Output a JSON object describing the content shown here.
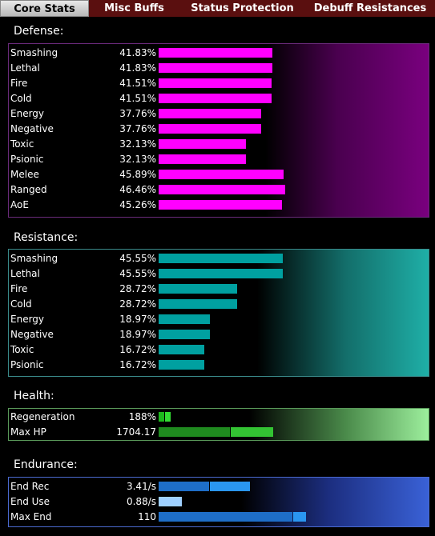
{
  "tabs": [
    {
      "label": "Core Stats",
      "active": true
    },
    {
      "label": "Misc Buffs",
      "active": false
    },
    {
      "label": "Status Protection",
      "active": false
    },
    {
      "label": "Debuff Resistances",
      "active": false
    }
  ],
  "defense": {
    "title": "Defense:",
    "color": "#ff00ff",
    "rows": [
      {
        "label": "Smashing",
        "value": "41.83%",
        "level": 41.83
      },
      {
        "label": "Lethal",
        "value": "41.83%",
        "level": 41.83
      },
      {
        "label": "Fire",
        "value": "41.51%",
        "level": 41.51
      },
      {
        "label": "Cold",
        "value": "41.51%",
        "level": 41.51
      },
      {
        "label": "Energy",
        "value": "37.76%",
        "level": 37.76
      },
      {
        "label": "Negative",
        "value": "37.76%",
        "level": 37.76
      },
      {
        "label": "Toxic",
        "value": "32.13%",
        "level": 32.13
      },
      {
        "label": "Psionic",
        "value": "32.13%",
        "level": 32.13
      },
      {
        "label": "Melee",
        "value": "45.89%",
        "level": 45.89
      },
      {
        "label": "Ranged",
        "value": "46.46%",
        "level": 46.46
      },
      {
        "label": "AoE",
        "value": "45.26%",
        "level": 45.26
      }
    ]
  },
  "resistance": {
    "title": "Resistance:",
    "color": "#00a0a0",
    "rows": [
      {
        "label": "Smashing",
        "value": "45.55%",
        "level": 45.55
      },
      {
        "label": "Lethal",
        "value": "45.55%",
        "level": 45.55
      },
      {
        "label": "Fire",
        "value": "28.72%",
        "level": 28.72
      },
      {
        "label": "Cold",
        "value": "28.72%",
        "level": 28.72
      },
      {
        "label": "Energy",
        "value": "18.97%",
        "level": 18.97
      },
      {
        "label": "Negative",
        "value": "18.97%",
        "level": 18.97
      },
      {
        "label": "Toxic",
        "value": "16.72%",
        "level": 16.72
      },
      {
        "label": "Psionic",
        "value": "16.72%",
        "level": 16.72
      }
    ]
  },
  "health": {
    "title": "Health:",
    "rows": [
      {
        "label": "Regeneration",
        "value": "188%"
      },
      {
        "label": "Max HP",
        "value": "1704.17"
      }
    ]
  },
  "endurance": {
    "title": "Endurance:",
    "rows": [
      {
        "label": "End Rec",
        "value": "3.41/s"
      },
      {
        "label": "End Use",
        "value": "0.88/s"
      },
      {
        "label": "Max End",
        "value": "110"
      }
    ]
  }
}
